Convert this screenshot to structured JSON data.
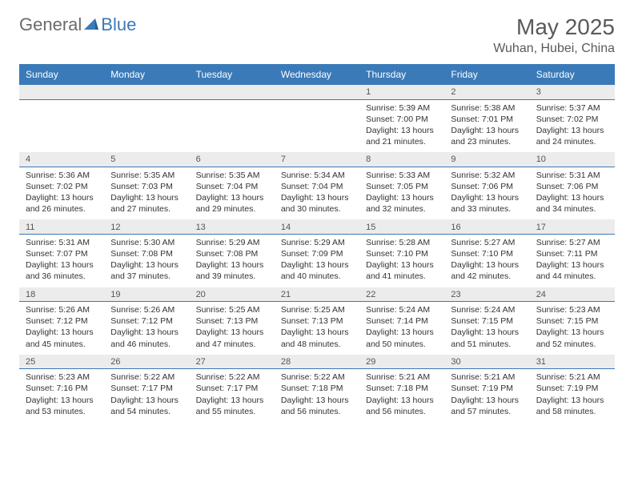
{
  "logo": {
    "part1": "General",
    "part2": "Blue"
  },
  "title": "May 2025",
  "location": "Wuhan, Hubei, China",
  "colors": {
    "header_bg": "#3a7ab8",
    "header_text": "#ffffff",
    "date_bg": "#ececec",
    "date_border": "#3a7ab8",
    "body_text": "#333333",
    "title_text": "#5a5a5a"
  },
  "daysOfWeek": [
    "Sunday",
    "Monday",
    "Tuesday",
    "Wednesday",
    "Thursday",
    "Friday",
    "Saturday"
  ],
  "weeks": [
    {
      "dates": [
        "",
        "",
        "",
        "",
        "1",
        "2",
        "3"
      ],
      "info": [
        null,
        null,
        null,
        null,
        {
          "sunrise": "Sunrise: 5:39 AM",
          "sunset": "Sunset: 7:00 PM",
          "daylight": "Daylight: 13 hours and 21 minutes."
        },
        {
          "sunrise": "Sunrise: 5:38 AM",
          "sunset": "Sunset: 7:01 PM",
          "daylight": "Daylight: 13 hours and 23 minutes."
        },
        {
          "sunrise": "Sunrise: 5:37 AM",
          "sunset": "Sunset: 7:02 PM",
          "daylight": "Daylight: 13 hours and 24 minutes."
        }
      ]
    },
    {
      "dates": [
        "4",
        "5",
        "6",
        "7",
        "8",
        "9",
        "10"
      ],
      "info": [
        {
          "sunrise": "Sunrise: 5:36 AM",
          "sunset": "Sunset: 7:02 PM",
          "daylight": "Daylight: 13 hours and 26 minutes."
        },
        {
          "sunrise": "Sunrise: 5:35 AM",
          "sunset": "Sunset: 7:03 PM",
          "daylight": "Daylight: 13 hours and 27 minutes."
        },
        {
          "sunrise": "Sunrise: 5:35 AM",
          "sunset": "Sunset: 7:04 PM",
          "daylight": "Daylight: 13 hours and 29 minutes."
        },
        {
          "sunrise": "Sunrise: 5:34 AM",
          "sunset": "Sunset: 7:04 PM",
          "daylight": "Daylight: 13 hours and 30 minutes."
        },
        {
          "sunrise": "Sunrise: 5:33 AM",
          "sunset": "Sunset: 7:05 PM",
          "daylight": "Daylight: 13 hours and 32 minutes."
        },
        {
          "sunrise": "Sunrise: 5:32 AM",
          "sunset": "Sunset: 7:06 PM",
          "daylight": "Daylight: 13 hours and 33 minutes."
        },
        {
          "sunrise": "Sunrise: 5:31 AM",
          "sunset": "Sunset: 7:06 PM",
          "daylight": "Daylight: 13 hours and 34 minutes."
        }
      ]
    },
    {
      "dates": [
        "11",
        "12",
        "13",
        "14",
        "15",
        "16",
        "17"
      ],
      "info": [
        {
          "sunrise": "Sunrise: 5:31 AM",
          "sunset": "Sunset: 7:07 PM",
          "daylight": "Daylight: 13 hours and 36 minutes."
        },
        {
          "sunrise": "Sunrise: 5:30 AM",
          "sunset": "Sunset: 7:08 PM",
          "daylight": "Daylight: 13 hours and 37 minutes."
        },
        {
          "sunrise": "Sunrise: 5:29 AM",
          "sunset": "Sunset: 7:08 PM",
          "daylight": "Daylight: 13 hours and 39 minutes."
        },
        {
          "sunrise": "Sunrise: 5:29 AM",
          "sunset": "Sunset: 7:09 PM",
          "daylight": "Daylight: 13 hours and 40 minutes."
        },
        {
          "sunrise": "Sunrise: 5:28 AM",
          "sunset": "Sunset: 7:10 PM",
          "daylight": "Daylight: 13 hours and 41 minutes."
        },
        {
          "sunrise": "Sunrise: 5:27 AM",
          "sunset": "Sunset: 7:10 PM",
          "daylight": "Daylight: 13 hours and 42 minutes."
        },
        {
          "sunrise": "Sunrise: 5:27 AM",
          "sunset": "Sunset: 7:11 PM",
          "daylight": "Daylight: 13 hours and 44 minutes."
        }
      ]
    },
    {
      "dates": [
        "18",
        "19",
        "20",
        "21",
        "22",
        "23",
        "24"
      ],
      "info": [
        {
          "sunrise": "Sunrise: 5:26 AM",
          "sunset": "Sunset: 7:12 PM",
          "daylight": "Daylight: 13 hours and 45 minutes."
        },
        {
          "sunrise": "Sunrise: 5:26 AM",
          "sunset": "Sunset: 7:12 PM",
          "daylight": "Daylight: 13 hours and 46 minutes."
        },
        {
          "sunrise": "Sunrise: 5:25 AM",
          "sunset": "Sunset: 7:13 PM",
          "daylight": "Daylight: 13 hours and 47 minutes."
        },
        {
          "sunrise": "Sunrise: 5:25 AM",
          "sunset": "Sunset: 7:13 PM",
          "daylight": "Daylight: 13 hours and 48 minutes."
        },
        {
          "sunrise": "Sunrise: 5:24 AM",
          "sunset": "Sunset: 7:14 PM",
          "daylight": "Daylight: 13 hours and 50 minutes."
        },
        {
          "sunrise": "Sunrise: 5:24 AM",
          "sunset": "Sunset: 7:15 PM",
          "daylight": "Daylight: 13 hours and 51 minutes."
        },
        {
          "sunrise": "Sunrise: 5:23 AM",
          "sunset": "Sunset: 7:15 PM",
          "daylight": "Daylight: 13 hours and 52 minutes."
        }
      ]
    },
    {
      "dates": [
        "25",
        "26",
        "27",
        "28",
        "29",
        "30",
        "31"
      ],
      "info": [
        {
          "sunrise": "Sunrise: 5:23 AM",
          "sunset": "Sunset: 7:16 PM",
          "daylight": "Daylight: 13 hours and 53 minutes."
        },
        {
          "sunrise": "Sunrise: 5:22 AM",
          "sunset": "Sunset: 7:17 PM",
          "daylight": "Daylight: 13 hours and 54 minutes."
        },
        {
          "sunrise": "Sunrise: 5:22 AM",
          "sunset": "Sunset: 7:17 PM",
          "daylight": "Daylight: 13 hours and 55 minutes."
        },
        {
          "sunrise": "Sunrise: 5:22 AM",
          "sunset": "Sunset: 7:18 PM",
          "daylight": "Daylight: 13 hours and 56 minutes."
        },
        {
          "sunrise": "Sunrise: 5:21 AM",
          "sunset": "Sunset: 7:18 PM",
          "daylight": "Daylight: 13 hours and 56 minutes."
        },
        {
          "sunrise": "Sunrise: 5:21 AM",
          "sunset": "Sunset: 7:19 PM",
          "daylight": "Daylight: 13 hours and 57 minutes."
        },
        {
          "sunrise": "Sunrise: 5:21 AM",
          "sunset": "Sunset: 7:19 PM",
          "daylight": "Daylight: 13 hours and 58 minutes."
        }
      ]
    }
  ]
}
